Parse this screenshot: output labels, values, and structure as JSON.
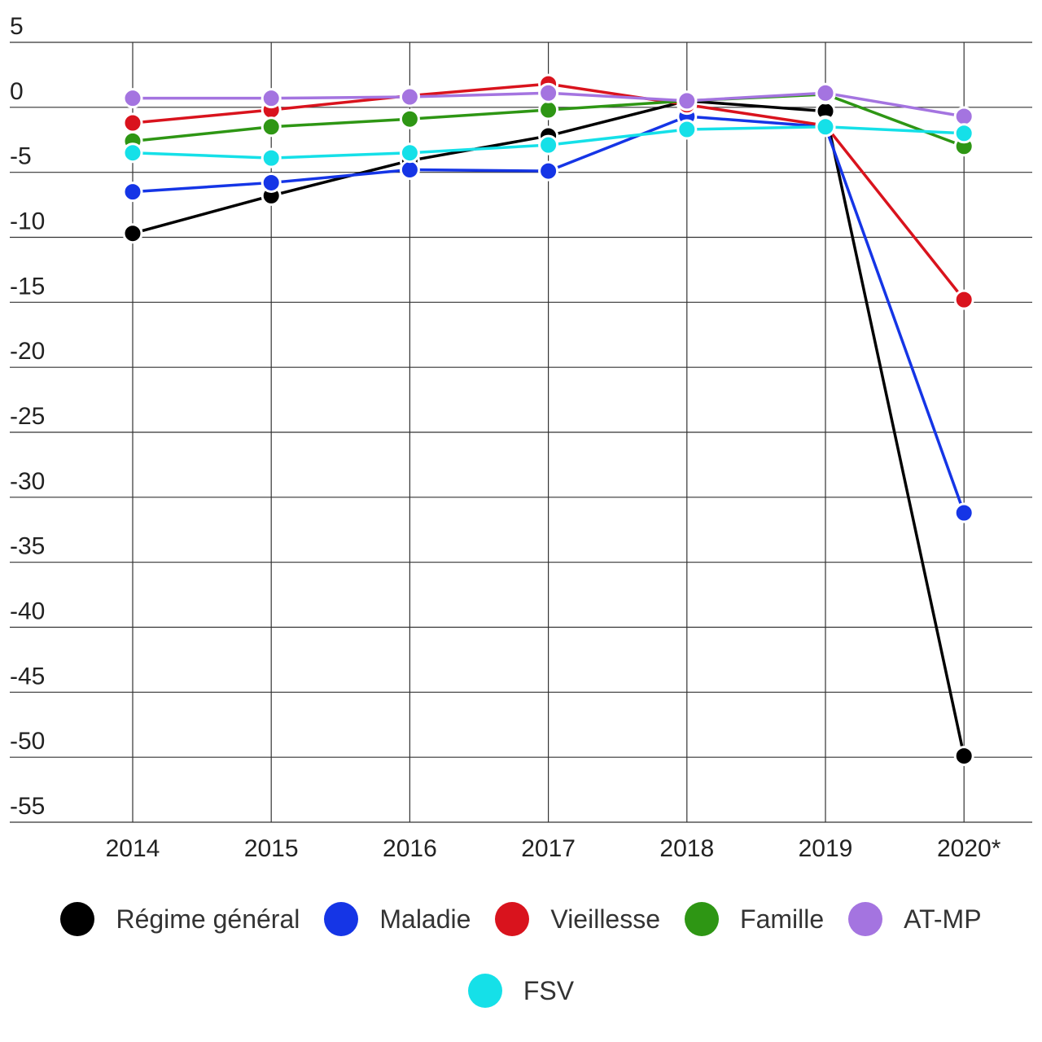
{
  "chart_data": {
    "type": "line",
    "title": "",
    "xlabel": "",
    "ylabel": "",
    "categories": [
      "2014",
      "2015",
      "2016",
      "2017",
      "2018",
      "2019",
      "2020*"
    ],
    "ylim": [
      -55,
      5
    ],
    "yticks": [
      5,
      0,
      -5,
      -10,
      -15,
      -20,
      -25,
      -30,
      -35,
      -40,
      -45,
      -50,
      -55
    ],
    "ytick_labels": [
      "5",
      "0",
      "-5",
      "-10",
      "-15",
      "-20",
      "-25",
      "-30",
      "-35",
      "-40",
      "-45",
      "-50",
      "-55"
    ],
    "grid": true,
    "legend_position": "bottom",
    "series": [
      {
        "name": "Régime général",
        "color": "#000000",
        "values": [
          -9.7,
          -6.8,
          -4.1,
          -2.2,
          0.5,
          -0.3,
          -49.9
        ]
      },
      {
        "name": "Maladie",
        "color": "#1535e6",
        "values": [
          -6.5,
          -5.8,
          -4.8,
          -4.9,
          -0.7,
          -1.5,
          -31.2
        ]
      },
      {
        "name": "Vieillesse",
        "color": "#d9131d",
        "values": [
          -1.2,
          -0.2,
          0.9,
          1.8,
          0.2,
          -1.4,
          -14.8
        ]
      },
      {
        "name": "Famille",
        "color": "#2e9614",
        "values": [
          -2.6,
          -1.5,
          -0.9,
          -0.2,
          0.5,
          1.0,
          -3.0
        ]
      },
      {
        "name": "AT-MP",
        "color": "#a474e0",
        "values": [
          0.7,
          0.7,
          0.8,
          1.1,
          0.5,
          1.1,
          -0.7
        ]
      },
      {
        "name": "FSV",
        "color": "#15e0e8",
        "values": [
          -3.5,
          -3.9,
          -3.5,
          -2.9,
          -1.7,
          -1.5,
          -2.0
        ]
      }
    ]
  }
}
